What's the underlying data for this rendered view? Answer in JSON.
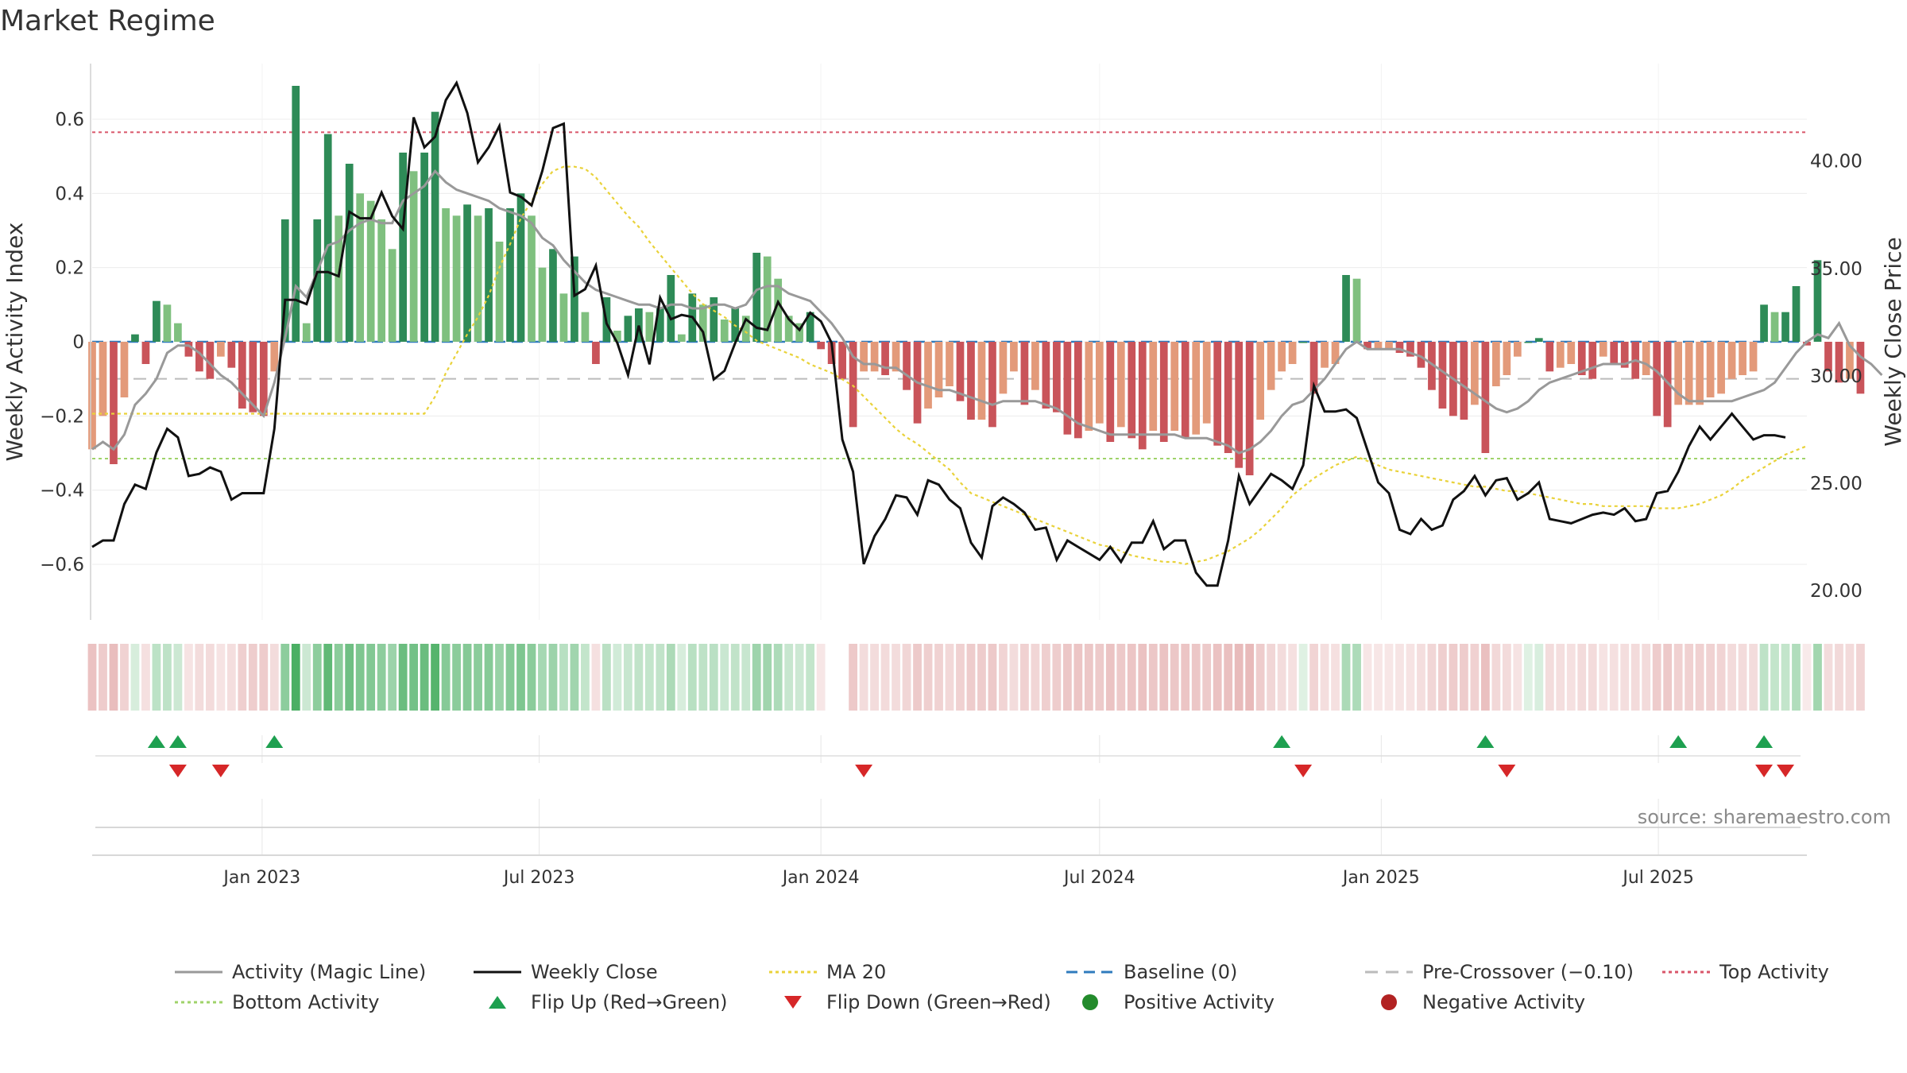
{
  "title": "Market Regime",
  "source": "source: sharemaestro.com",
  "legend": [
    {
      "label": "Activity (Magic Line)",
      "kind": "line",
      "color": "#999999",
      "dash": ""
    },
    {
      "label": "Weekly Close",
      "kind": "line",
      "color": "#111111",
      "dash": ""
    },
    {
      "label": "MA 20",
      "kind": "line",
      "color": "#e9d23a",
      "dash": "4,4"
    },
    {
      "label": "Baseline (0)",
      "kind": "line",
      "color": "#2f7bbd",
      "dash": "14,8"
    },
    {
      "label": "Pre-Crossover (−0.10)",
      "kind": "line",
      "color": "#bbbbbb",
      "dash": "16,10"
    },
    {
      "label": "Top Activity",
      "kind": "line",
      "color": "#d9566a",
      "dash": "4,4"
    },
    {
      "label": "Bottom Activity",
      "kind": "line",
      "color": "#9fd36a",
      "dash": "4,4"
    },
    {
      "label": "Flip Up (Red→Green)",
      "kind": "tri-up",
      "color": "#1ea050",
      "dash": ""
    },
    {
      "label": "Flip Down (Green→Red)",
      "kind": "tri-down",
      "color": "#d62728",
      "dash": ""
    },
    {
      "label": "Positive Activity",
      "kind": "dot",
      "color": "#238b2c",
      "dash": ""
    },
    {
      "label": "Negative Activity",
      "kind": "dot",
      "color": "#b22222",
      "dash": ""
    }
  ],
  "chart_data": {
    "type": "bar",
    "ylabel": "Weekly Activity Index",
    "y2label": "Weekly Close Price",
    "ylim": [
      -0.75,
      0.75
    ],
    "y2lim": [
      18.6,
      44.5
    ],
    "yticks": [
      0.6,
      0.4,
      0.2,
      0,
      -0.2,
      -0.4,
      -0.6
    ],
    "ytick_labels": [
      "0.6",
      "0.4",
      "0.2",
      "0",
      "−0.2",
      "−0.4",
      "−0.6"
    ],
    "y2ticks": [
      40,
      35,
      30,
      25,
      20
    ],
    "y2tick_labels": [
      "40.00",
      "35.00",
      "30.00",
      "25.00",
      "20.00"
    ],
    "x_range": [
      "2022-09-12",
      "2025-10-06"
    ],
    "xticks": [
      "2023-01-01",
      "2023-07-01",
      "2024-01-01",
      "2024-07-01",
      "2025-01-01",
      "2025-07-01"
    ],
    "xtick_labels": [
      "Jan 2023",
      "Jul 2023",
      "Jan 2024",
      "Jul 2024",
      "Jan 2025",
      "Jul 2025"
    ],
    "top_activity": 0.565,
    "bottom_activity": -0.315,
    "pre_crossover": -0.1,
    "baseline": 0,
    "start_week": "2022-09-12",
    "activity": [
      -0.29,
      -0.2,
      -0.33,
      -0.15,
      0.02,
      -0.06,
      0.11,
      0.1,
      0.05,
      -0.04,
      -0.08,
      -0.1,
      -0.04,
      -0.07,
      -0.18,
      -0.19,
      -0.2,
      -0.08,
      0.33,
      0.69,
      0.05,
      0.33,
      0.56,
      0.34,
      0.48,
      0.4,
      0.38,
      0.33,
      0.25,
      0.51,
      0.46,
      0.51,
      0.62,
      0.36,
      0.34,
      0.37,
      0.34,
      0.36,
      0.27,
      0.36,
      0.4,
      0.34,
      0.2,
      0.25,
      0.13,
      0.23,
      0.08,
      -0.06,
      0.12,
      0.03,
      0.07,
      0.09,
      0.08,
      0.09,
      0.18,
      0.02,
      0.13,
      0.1,
      0.12,
      0.06,
      0.09,
      0.07,
      0.24,
      0.23,
      0.17,
      0.07,
      0.05,
      0.08,
      -0.02,
      -0.06,
      -0.1,
      -0.23,
      -0.08,
      -0.08,
      -0.09,
      -0.08,
      -0.13,
      -0.22,
      -0.18,
      -0.15,
      -0.12,
      -0.16,
      -0.21,
      -0.21,
      -0.23,
      -0.14,
      -0.08,
      -0.17,
      -0.13,
      -0.18,
      -0.19,
      -0.25,
      -0.26,
      -0.24,
      -0.22,
      -0.27,
      -0.23,
      -0.26,
      -0.29,
      -0.24,
      -0.27,
      -0.24,
      -0.26,
      -0.25,
      -0.22,
      -0.28,
      -0.3,
      -0.34,
      -0.36,
      -0.21,
      -0.13,
      -0.08,
      -0.06,
      0.0,
      -0.14,
      -0.07,
      -0.06,
      0.18,
      0.17,
      -0.02,
      -0.02,
      -0.02,
      -0.03,
      -0.04,
      -0.07,
      -0.13,
      -0.18,
      -0.2,
      -0.21,
      -0.17,
      -0.3,
      -0.12,
      -0.09,
      -0.04,
      0.0,
      0.01,
      -0.08,
      -0.07,
      -0.06,
      -0.09,
      -0.1,
      -0.04,
      -0.06,
      -0.07,
      -0.1,
      -0.09,
      -0.2,
      -0.23,
      -0.17,
      -0.17,
      -0.17,
      -0.15,
      -0.14,
      -0.1,
      -0.09,
      -0.08,
      0.1,
      0.08,
      0.08,
      0.15,
      -0.01,
      0.22,
      -0.08,
      -0.11,
      -0.1,
      -0.14
    ],
    "magic_line": [
      -0.29,
      -0.27,
      -0.29,
      -0.25,
      -0.17,
      -0.14,
      -0.1,
      -0.03,
      -0.01,
      -0.01,
      -0.03,
      -0.06,
      -0.09,
      -0.11,
      -0.14,
      -0.17,
      -0.2,
      -0.11,
      0.01,
      0.15,
      0.12,
      0.19,
      0.26,
      0.27,
      0.3,
      0.32,
      0.33,
      0.32,
      0.32,
      0.38,
      0.4,
      0.42,
      0.46,
      0.43,
      0.41,
      0.4,
      0.39,
      0.38,
      0.36,
      0.35,
      0.34,
      0.32,
      0.28,
      0.26,
      0.22,
      0.19,
      0.16,
      0.14,
      0.13,
      0.12,
      0.11,
      0.1,
      0.1,
      0.09,
      0.1,
      0.1,
      0.09,
      0.09,
      0.1,
      0.1,
      0.09,
      0.1,
      0.14,
      0.15,
      0.15,
      0.13,
      0.12,
      0.11,
      0.08,
      0.05,
      0.01,
      -0.04,
      -0.06,
      -0.06,
      -0.07,
      -0.07,
      -0.09,
      -0.11,
      -0.12,
      -0.13,
      -0.13,
      -0.14,
      -0.15,
      -0.16,
      -0.17,
      -0.16,
      -0.16,
      -0.16,
      -0.16,
      -0.17,
      -0.18,
      -0.2,
      -0.22,
      -0.23,
      -0.24,
      -0.25,
      -0.25,
      -0.25,
      -0.25,
      -0.25,
      -0.25,
      -0.25,
      -0.26,
      -0.26,
      -0.26,
      -0.27,
      -0.28,
      -0.3,
      -0.29,
      -0.27,
      -0.24,
      -0.2,
      -0.17,
      -0.16,
      -0.13,
      -0.1,
      -0.06,
      -0.02,
      0.0,
      -0.02,
      -0.02,
      -0.02,
      -0.02,
      -0.03,
      -0.04,
      -0.06,
      -0.08,
      -0.1,
      -0.12,
      -0.14,
      -0.16,
      -0.18,
      -0.19,
      -0.18,
      -0.16,
      -0.13,
      -0.11,
      -0.1,
      -0.09,
      -0.08,
      -0.07,
      -0.06,
      -0.06,
      -0.06,
      -0.05,
      -0.06,
      -0.08,
      -0.11,
      -0.14,
      -0.16,
      -0.16,
      -0.16,
      -0.16,
      -0.16,
      -0.15,
      -0.14,
      -0.13,
      -0.11,
      -0.07,
      -0.03,
      0.0,
      0.02,
      0.01,
      0.05,
      -0.01,
      -0.04,
      -0.06,
      -0.09
    ],
    "weekly_close": [
      22.0,
      22.3,
      22.3,
      24.0,
      24.9,
      24.7,
      26.4,
      27.5,
      27.1,
      25.3,
      25.4,
      25.7,
      25.5,
      24.2,
      24.5,
      24.5,
      24.5,
      27.5,
      33.5,
      33.5,
      33.3,
      34.8,
      34.8,
      34.6,
      37.6,
      37.3,
      37.3,
      38.5,
      37.4,
      36.8,
      42.0,
      40.6,
      41.1,
      42.8,
      43.6,
      42.2,
      39.9,
      40.6,
      41.6,
      38.5,
      38.3,
      37.9,
      39.5,
      41.5,
      41.7,
      33.7,
      34.0,
      35.1,
      32.4,
      31.5,
      30.0,
      32.3,
      30.5,
      33.6,
      32.6,
      32.8,
      32.7,
      32.0,
      29.8,
      30.2,
      31.5,
      32.6,
      32.2,
      32.1,
      33.4,
      32.6,
      32.1,
      32.9,
      32.5,
      31.5,
      27.0,
      25.5,
      21.2,
      22.5,
      23.3,
      24.4,
      24.3,
      23.5,
      25.1,
      24.9,
      24.2,
      23.8,
      22.2,
      21.5,
      23.9,
      24.3,
      24.0,
      23.6,
      22.8,
      22.9,
      21.4,
      22.3,
      22.0,
      21.7,
      21.4,
      22.0,
      21.3,
      22.2,
      22.2,
      23.2,
      21.9,
      22.3,
      22.3,
      20.8,
      20.2,
      20.2,
      22.3,
      25.3,
      24.0,
      24.7,
      25.4,
      25.1,
      24.7,
      25.8,
      29.5,
      28.3,
      28.3,
      28.4,
      28.0,
      26.5,
      25.0,
      24.5,
      22.8,
      22.6,
      23.3,
      22.8,
      23.0,
      24.2,
      24.6,
      25.3,
      24.4,
      25.1,
      25.2,
      24.2,
      24.5,
      25.0,
      23.3,
      23.2,
      23.1,
      23.3,
      23.5,
      23.6,
      23.5,
      23.8,
      23.2,
      23.3,
      24.5,
      24.6,
      25.5,
      26.7,
      27.6,
      27.0,
      27.6,
      28.2,
      27.6,
      27.0,
      27.2,
      27.2,
      27.1
    ],
    "ma20": [
      28.2,
      28.2,
      28.2,
      28.2,
      28.2,
      28.2,
      28.2,
      28.2,
      28.2,
      28.2,
      28.2,
      28.2,
      28.2,
      28.2,
      28.2,
      28.2,
      28.2,
      28.2,
      28.2,
      28.2,
      28.2,
      28.2,
      28.2,
      28.2,
      28.2,
      28.2,
      28.2,
      28.2,
      28.2,
      28.2,
      28.2,
      28.2,
      29.0,
      30.1,
      31.0,
      31.9,
      32.7,
      33.7,
      35.0,
      36.1,
      37.3,
      38.1,
      38.9,
      39.5,
      39.7,
      39.7,
      39.6,
      39.2,
      38.6,
      38.0,
      37.4,
      36.9,
      36.2,
      35.6,
      35.0,
      34.4,
      33.8,
      33.3,
      33.0,
      32.7,
      32.3,
      32.0,
      31.6,
      31.4,
      31.2,
      31.0,
      30.8,
      30.5,
      30.3,
      30.1,
      29.8,
      29.5,
      29.0,
      28.5,
      28.0,
      27.5,
      27.1,
      26.8,
      26.4,
      26.0,
      25.6,
      25.0,
      24.5,
      24.3,
      24.1,
      23.9,
      23.7,
      23.5,
      23.3,
      23.1,
      22.9,
      22.7,
      22.5,
      22.3,
      22.1,
      22.0,
      21.8,
      21.6,
      21.5,
      21.4,
      21.3,
      21.3,
      21.2,
      21.3,
      21.4,
      21.6,
      21.8,
      22.1,
      22.4,
      22.8,
      23.3,
      23.8,
      24.4,
      24.8,
      25.2,
      25.5,
      25.8,
      26.0,
      26.2,
      26.0,
      25.8,
      25.6,
      25.5,
      25.4,
      25.3,
      25.2,
      25.1,
      25.0,
      24.9,
      24.8,
      24.8,
      24.7,
      24.6,
      24.6,
      24.5,
      24.4,
      24.3,
      24.2,
      24.1,
      24.0,
      24.0,
      23.9,
      23.9,
      23.9,
      23.9,
      23.9,
      23.8,
      23.8,
      23.8,
      23.9,
      24.0,
      24.2,
      24.4,
      24.7,
      25.1,
      25.4,
      25.7,
      26.0,
      26.3,
      26.5,
      26.7
    ],
    "flip_up": [
      "2022-10-24",
      "2022-11-07",
      "2023-01-09",
      "2024-10-28",
      "2025-03-10",
      "2025-07-14",
      "2025-09-08"
    ],
    "flip_down": [
      "2022-11-07",
      "2022-12-05",
      "2024-01-29",
      "2024-11-11",
      "2025-03-24",
      "2025-09-08",
      "2025-09-22"
    ]
  }
}
